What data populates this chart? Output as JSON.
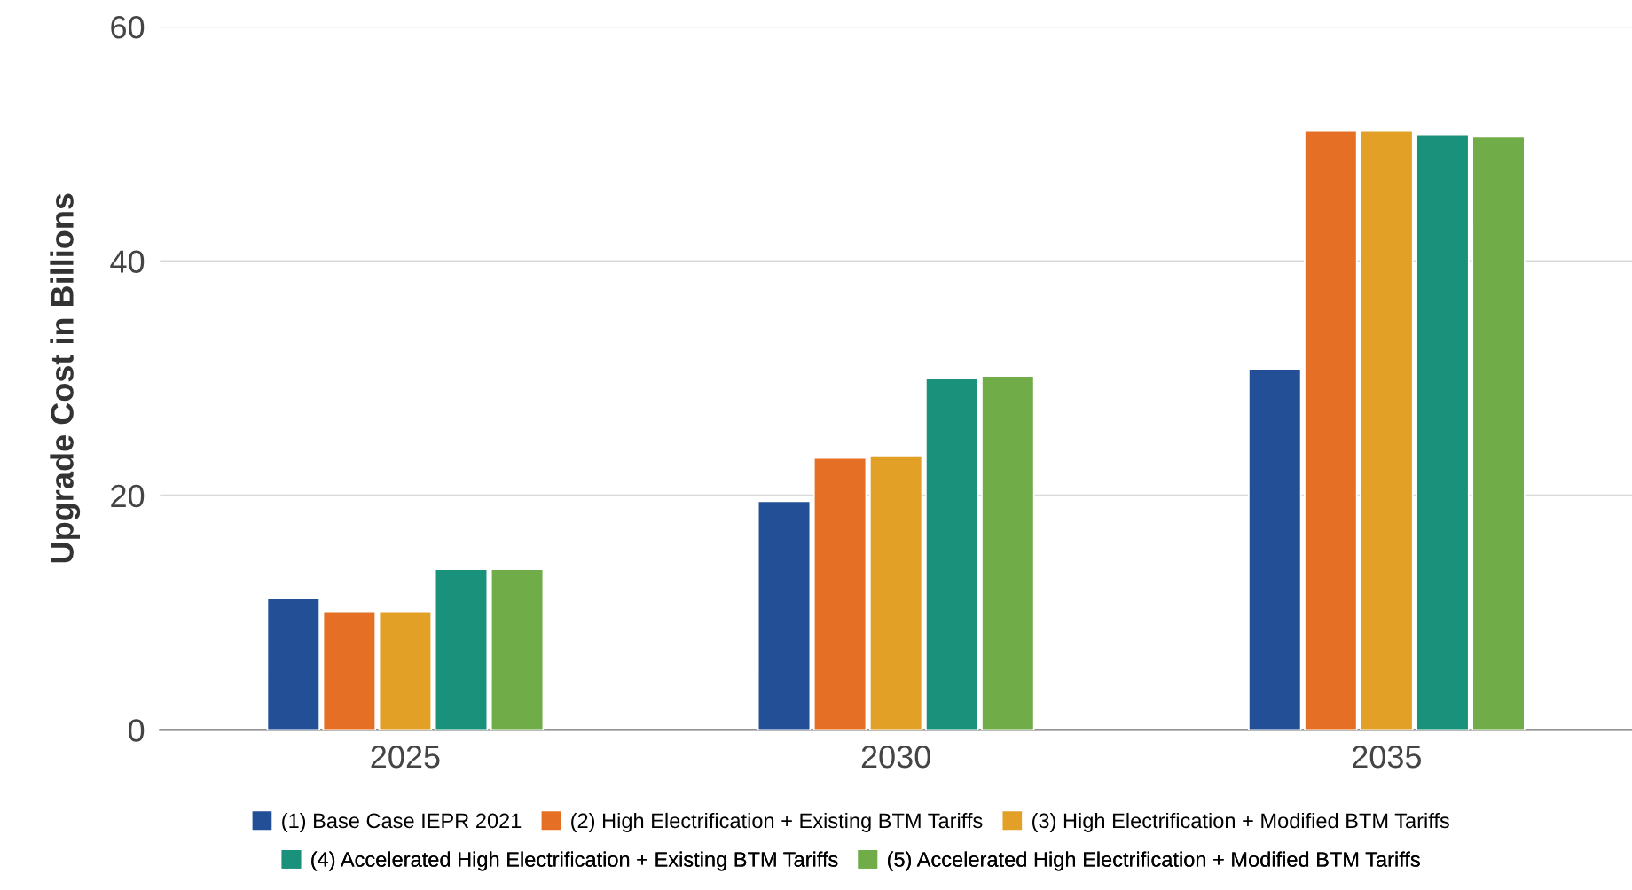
{
  "chart_data": {
    "type": "bar",
    "ylabel": "Upgrade Cost in Billions",
    "categories": [
      "2025",
      "2030",
      "2035"
    ],
    "series": [
      {
        "name": "(1) Base Case IEPR 2021",
        "color": "#234f96",
        "values": [
          11.2,
          19.5,
          30.8
        ]
      },
      {
        "name": "(2) High Electrification + Existing BTM Tariffs",
        "color": "#e57025",
        "values": [
          10.1,
          23.2,
          51.1
        ]
      },
      {
        "name": "(3) High Electrification + Modified BTM Tariffs",
        "color": "#e3a027",
        "values": [
          10.1,
          23.4,
          51.1
        ]
      },
      {
        "name": "(4) Accelerated High Electrification + Existing BTM Tariffs",
        "color": "#1a917a",
        "values": [
          13.7,
          30.0,
          50.8
        ]
      },
      {
        "name": "(5) Accelerated High Electrification + Modified BTM Tariffs",
        "color": "#70ac48",
        "values": [
          13.7,
          30.2,
          50.6
        ]
      }
    ],
    "ylim": [
      0,
      60
    ],
    "yticks": [
      0,
      20,
      40,
      60
    ],
    "grid": "y",
    "legend": "bottom"
  }
}
